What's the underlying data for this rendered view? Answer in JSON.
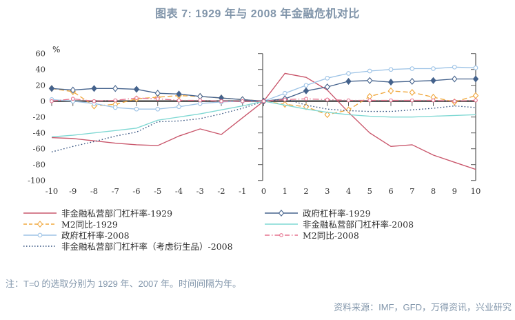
{
  "title": "图表 7: 1929 年与 2008 年金融危机对比",
  "note": "注：T=0 的选取分别为 1929 年、2007 年。时间间隔为年。",
  "source": "资料来源：IMF，GFD，万得资讯，兴业研究",
  "colors": {
    "title_text": "#8195aa",
    "note_text": "#8296ab",
    "axis_line": "#595959",
    "axis_text": "#333333",
    "legend_text": "#2f2f2f"
  },
  "chart_data": {
    "type": "line",
    "title": "图表 7: 1929 年与 2008 年金融危机对比",
    "unit_label": "%",
    "x": [
      -10,
      -9,
      -8,
      -7,
      -6,
      -5,
      -4,
      -3,
      -2,
      -1,
      0,
      1,
      2,
      3,
      4,
      5,
      6,
      7,
      8,
      9,
      10
    ],
    "xlim": [
      -10,
      10
    ],
    "ylim": [
      -100,
      60
    ],
    "yticks": [
      60,
      40,
      20,
      0,
      -20,
      -40,
      -60,
      -80,
      -100
    ],
    "grid": false,
    "legend_position": "bottom-two-columns",
    "series": [
      {
        "name": "非金融私营部门杠杆率-1929",
        "color": "#c9566b",
        "style": "solid",
        "marker": "none",
        "legend_col": "left",
        "values": [
          -46,
          -47,
          -50,
          -53,
          -55,
          -56,
          -44,
          -35,
          -42,
          -21,
          0,
          35,
          30,
          14,
          -14,
          -40,
          -57,
          -55,
          -68,
          -77,
          -86
        ]
      },
      {
        "name": "M2同比-1929",
        "color": "#f0a73c",
        "style": "dashed",
        "marker": "diamond-open",
        "legend_col": "left",
        "values": [
          16,
          12,
          -6,
          -4,
          3,
          5,
          7,
          6,
          4,
          2,
          0,
          -4,
          -7,
          -17,
          -11,
          6,
          13,
          11,
          5,
          -1,
          7
        ]
      },
      {
        "name": "政府杠杆率-2008",
        "color": "#9dc3e6",
        "style": "solid",
        "marker": "circle-open",
        "legend_col": "left",
        "values": [
          2,
          0,
          -3,
          -8,
          -10,
          -10,
          -7,
          -3,
          -1,
          0,
          0,
          10,
          20,
          29,
          35,
          38,
          40,
          41,
          41,
          43,
          42
        ]
      },
      {
        "name": "非金融私营部门杠杆率（考虑衍生品）-2008",
        "color": "#2e4d7b",
        "style": "dotted",
        "marker": "none",
        "legend_col": "left",
        "values": [
          -64,
          -57,
          -51,
          -44,
          -39,
          -26,
          -25,
          -22,
          -16,
          -9,
          0,
          3,
          -5,
          -10,
          -12,
          -13,
          -13,
          -11,
          -9,
          -6,
          -8
        ]
      },
      {
        "name": "政府杠杆率-1929",
        "color": "#44628c",
        "style": "solid",
        "marker": "diamond-alt",
        "legend_col": "right",
        "values": [
          16,
          14,
          16,
          16,
          15,
          10,
          9,
          6,
          4,
          2,
          0,
          3,
          13,
          18,
          25,
          26,
          24,
          25,
          26,
          28,
          28
        ]
      },
      {
        "name": "非金融私营部门杠杆率-2008",
        "color": "#7fd8d3",
        "style": "solid",
        "marker": "none",
        "legend_col": "right",
        "values": [
          -45,
          -43,
          -40,
          -37,
          -34,
          -24,
          -20,
          -16,
          -11,
          -6,
          0,
          -5,
          -10,
          -14,
          -17,
          -19,
          -20,
          -20,
          -19,
          -18,
          -17
        ]
      },
      {
        "name": "M2同比-2008",
        "color": "#e6738f",
        "style": "dashdot",
        "marker": "circle-open-small",
        "legend_col": "right",
        "values": [
          0,
          3,
          0,
          1,
          4,
          3,
          1,
          1,
          0,
          0,
          0,
          2,
          3,
          2,
          1,
          1,
          1,
          1,
          1,
          0,
          1
        ]
      }
    ]
  }
}
